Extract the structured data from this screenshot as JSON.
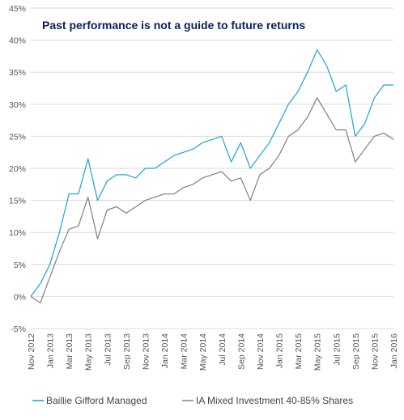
{
  "chart_data": {
    "type": "line",
    "title": "Past performance is not a guide to future returns",
    "xlabel": "",
    "ylabel": "",
    "ylim": [
      -5,
      45
    ],
    "yticks": [
      -5,
      0,
      5,
      10,
      15,
      20,
      25,
      30,
      35,
      40,
      45
    ],
    "y_tick_labels": [
      "-5%",
      "0%",
      "5%",
      "10%",
      "15%",
      "20%",
      "25%",
      "30%",
      "35%",
      "40%",
      "45%"
    ],
    "x_tick_labels": [
      "Nov 2012",
      "Jan 2013",
      "Mar 2013",
      "May 2013",
      "Jul 2013",
      "Sep 2013",
      "Nov 2013",
      "Jan 2014",
      "Mar 2014",
      "May 2014",
      "Jul 2014",
      "Sep 2014",
      "Nov 2014",
      "Jan 2015",
      "Mar 2015",
      "May 2015",
      "Jul 2015",
      "Sep 2015",
      "Nov 2015",
      "Jan 2016"
    ],
    "grid": true,
    "legend_position": "bottom",
    "x": [
      "2012-11",
      "2012-12",
      "2013-01",
      "2013-02",
      "2013-03",
      "2013-04",
      "2013-05",
      "2013-06",
      "2013-07",
      "2013-08",
      "2013-09",
      "2013-10",
      "2013-11",
      "2013-12",
      "2014-01",
      "2014-02",
      "2014-03",
      "2014-04",
      "2014-05",
      "2014-06",
      "2014-07",
      "2014-08",
      "2014-09",
      "2014-10",
      "2014-11",
      "2014-12",
      "2015-01",
      "2015-02",
      "2015-03",
      "2015-04",
      "2015-05",
      "2015-06",
      "2015-07",
      "2015-08",
      "2015-09",
      "2015-10",
      "2015-11",
      "2015-12",
      "2016-01"
    ],
    "series": [
      {
        "name": "Baillie Gifford Managed",
        "color": "#1aa3d9",
        "values": [
          0,
          2,
          5,
          10,
          16,
          16,
          21.5,
          15,
          18,
          19,
          19,
          18.5,
          20,
          20,
          21,
          22,
          22.5,
          23,
          24,
          24.5,
          25,
          21,
          24,
          20,
          22,
          24,
          27,
          30,
          32,
          35,
          38.5,
          36,
          32,
          33,
          25,
          27,
          31,
          33,
          33
        ]
      },
      {
        "name": "IA Mixed Investment 40-85% Shares",
        "color": "#7f7f7f",
        "values": [
          0,
          -1,
          3,
          7,
          10.5,
          11,
          15.5,
          9,
          13.5,
          14,
          13,
          14,
          15,
          15.5,
          16,
          16,
          17,
          17.5,
          18.5,
          19,
          19.5,
          18,
          18.5,
          15,
          19,
          20,
          22,
          25,
          26,
          28,
          31,
          28.5,
          26,
          26,
          21,
          23,
          25,
          25.5,
          24.5
        ]
      }
    ]
  }
}
